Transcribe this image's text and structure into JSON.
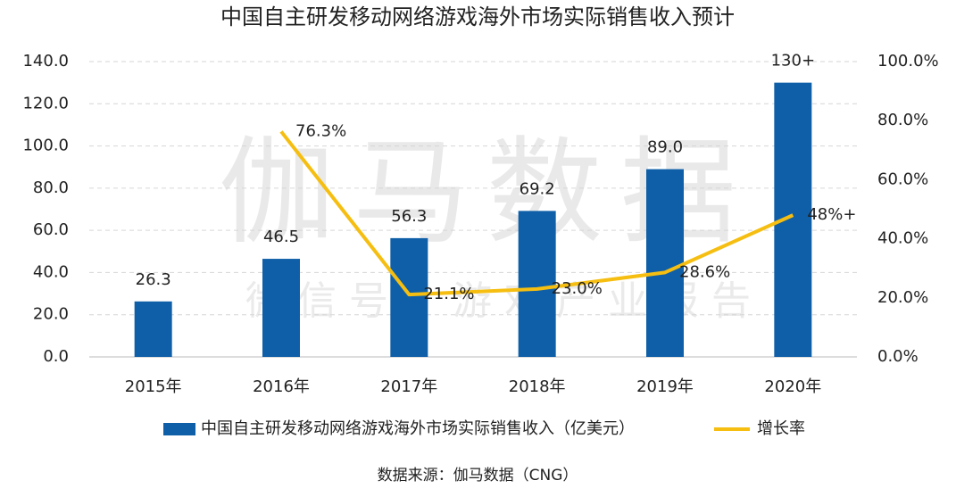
{
  "chart_data": {
    "type": "bar-line",
    "title": "中国自主研发移动网络游戏海外市场实际销售收入预计",
    "categories": [
      "2015年",
      "2016年",
      "2017年",
      "2018年",
      "2019年",
      "2020年"
    ],
    "series": [
      {
        "name": "中国自主研发移动网络游戏海外市场实际销售收入（亿美元）",
        "type": "bar",
        "color": "#0f5fa8",
        "values": [
          26.3,
          46.5,
          56.3,
          69.2,
          89.0,
          130
        ],
        "value_labels": [
          "26.3",
          "46.5",
          "56.3",
          "69.2",
          "89.0",
          "130+"
        ]
      },
      {
        "name": "增长率",
        "type": "line",
        "axis": "y2",
        "color": "#f5be10",
        "values": [
          null,
          76.3,
          21.1,
          23.0,
          28.6,
          48
        ],
        "value_labels": [
          null,
          "76.3%",
          "21.1%",
          "23.0%",
          "28.6%",
          "48%+"
        ]
      }
    ],
    "ylim": [
      0,
      140
    ],
    "yticks": [
      {
        "value": 0,
        "label": "0.0"
      },
      {
        "value": 20,
        "label": "20.0"
      },
      {
        "value": 40,
        "label": "40.0"
      },
      {
        "value": 60,
        "label": "60.0"
      },
      {
        "value": 80,
        "label": "80.0"
      },
      {
        "value": 100,
        "label": "100.0"
      },
      {
        "value": 120,
        "label": "120.0"
      },
      {
        "value": 140,
        "label": "140.0"
      }
    ],
    "y2lim": [
      0,
      100
    ],
    "y2ticks": [
      {
        "value": 0,
        "label": "0.0%"
      },
      {
        "value": 20,
        "label": "20.0%"
      },
      {
        "value": 40,
        "label": "40.0%"
      },
      {
        "value": 60,
        "label": "60.0%"
      },
      {
        "value": 80,
        "label": "80.0%"
      },
      {
        "value": 100,
        "label": "100.0%"
      }
    ],
    "grid": true,
    "legend": "bottom",
    "watermark": [
      "伽马数据",
      "微信号：游戏产业报告"
    ],
    "source": "数据来源：伽马数据（CNG）"
  }
}
